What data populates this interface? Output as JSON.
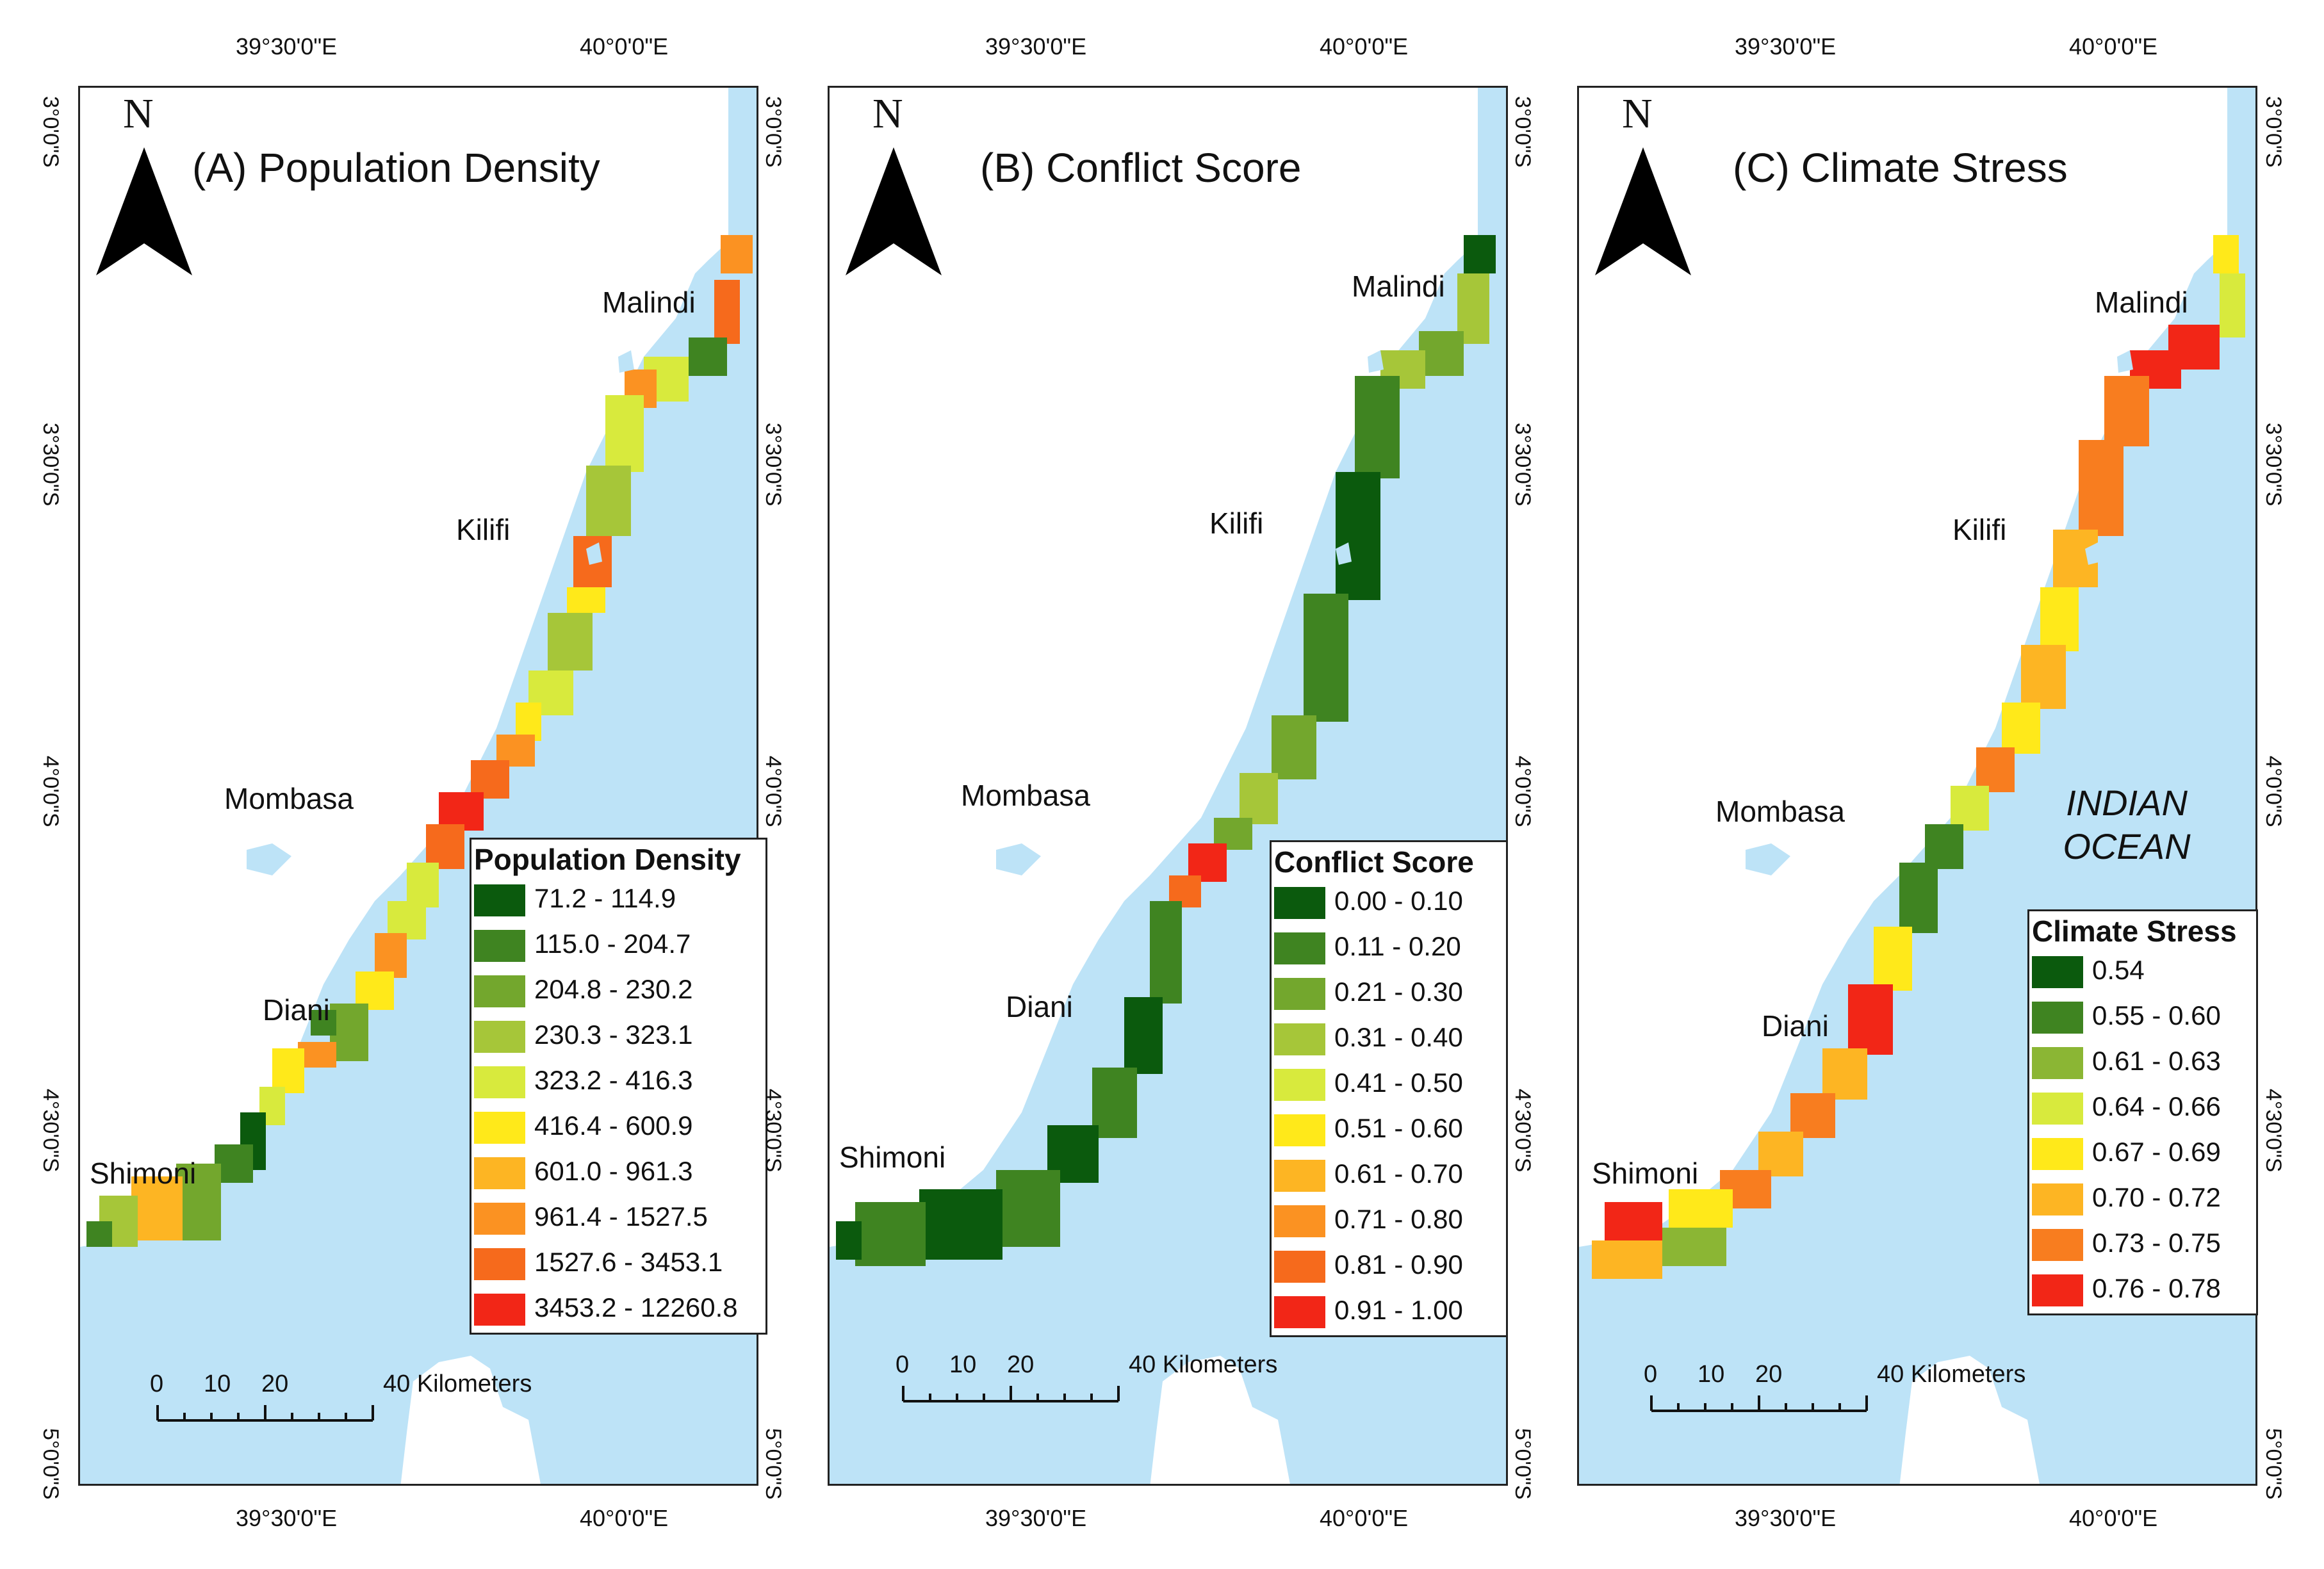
{
  "colors": {
    "ocean": "#bde3f7",
    "land": "#ffffff",
    "frame": "#222222"
  },
  "coords": {
    "lon1": "39°30'0\"E",
    "lon2": "40°0'0\"E",
    "lat1": "3°0'0\"S",
    "lat2": "3°30'0\"S",
    "lat3": "4°0'0\"S",
    "lat4": "4°30'0\"S",
    "lat5": "5°0'0\"S"
  },
  "north_label": "N",
  "places": {
    "malindi": "Malindi",
    "kilifi": "Kilifi",
    "mombasa": "Mombasa",
    "diani": "Diani",
    "shimoni": "Shimoni"
  },
  "ocean_label_line1": "INDIAN",
  "ocean_label_line2": "OCEAN",
  "scale": {
    "t0": "0",
    "t1": "10",
    "t2": "20",
    "t3": "40 Kilometers"
  },
  "panels": [
    {
      "title": "(A) Population Density",
      "legend": {
        "title": "Population Density",
        "items": [
          {
            "label": "71.2 - 114.9",
            "color": "#0b5a0d"
          },
          {
            "label": "115.0 - 204.7",
            "color": "#3f8421"
          },
          {
            "label": "204.8 - 230.2",
            "color": "#73a72d"
          },
          {
            "label": "230.3 - 323.1",
            "color": "#a6c639"
          },
          {
            "label": "323.2 - 416.3",
            "color": "#d8ea3d"
          },
          {
            "label": "416.4 - 600.9",
            "color": "#ffe91a"
          },
          {
            "label": "601.0 - 961.3",
            "color": "#fdb523"
          },
          {
            "label": "961.4 - 1527.5",
            "color": "#fb9222"
          },
          {
            "label": "1527.6 - 3453.1",
            "color": "#f66a1c"
          },
          {
            "label": "3453.2 - 12260.8",
            "color": "#f22617"
          }
        ]
      }
    },
    {
      "title": "(B) Conflict Score",
      "legend": {
        "title": "Conflict Score",
        "items": [
          {
            "label": "0.00 - 0.10",
            "color": "#0b5a0d"
          },
          {
            "label": "0.11 - 0.20",
            "color": "#3f8421"
          },
          {
            "label": "0.21 - 0.30",
            "color": "#73a72d"
          },
          {
            "label": "0.31 - 0.40",
            "color": "#a6c639"
          },
          {
            "label": "0.41 - 0.50",
            "color": "#d8ea3d"
          },
          {
            "label": "0.51 - 0.60",
            "color": "#ffe91a"
          },
          {
            "label": "0.61 - 0.70",
            "color": "#fdb523"
          },
          {
            "label": "0.71 - 0.80",
            "color": "#fb9222"
          },
          {
            "label": "0.81 - 0.90",
            "color": "#f66a1c"
          },
          {
            "label": "0.91 - 1.00",
            "color": "#f22617"
          }
        ]
      }
    },
    {
      "title": "(C) Climate Stress",
      "legend": {
        "title": "Climate Stress",
        "items": [
          {
            "label": "0.54",
            "color": "#0b5a0d"
          },
          {
            "label": "0.55 - 0.60",
            "color": "#3f8421"
          },
          {
            "label": "0.61 - 0.63",
            "color": "#8bb634"
          },
          {
            "label": "0.64 - 0.66",
            "color": "#d8ea3d"
          },
          {
            "label": "0.67 - 0.69",
            "color": "#ffe91a"
          },
          {
            "label": "0.70 - 0.72",
            "color": "#fdb523"
          },
          {
            "label": "0.73 - 0.75",
            "color": "#f87d1f"
          },
          {
            "label": "0.76 - 0.78",
            "color": "#f22617"
          }
        ]
      }
    }
  ]
}
